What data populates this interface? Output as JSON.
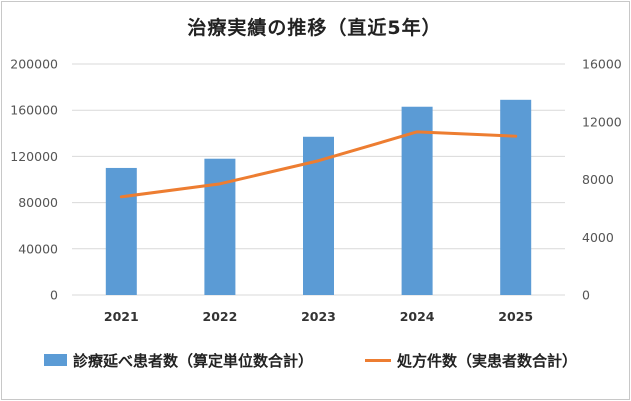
{
  "chart_data": {
    "type": "bar+line",
    "title": "治療実績の推移（直近5年）",
    "categories": [
      "2021",
      "2022",
      "2023",
      "2024",
      "2025"
    ],
    "series": [
      {
        "name": "診療延べ患者数（算定単位数合計）",
        "type": "bar",
        "axis": "left",
        "color": "#5b9bd5",
        "values": [
          110000,
          118000,
          137000,
          163000,
          169000
        ]
      },
      {
        "name": "処方件数（実患者数合計）",
        "type": "line",
        "axis": "right",
        "color": "#ed7d31",
        "values": [
          6800,
          7700,
          9300,
          11300,
          11000
        ]
      }
    ],
    "y_left": {
      "min": 0,
      "max": 200000,
      "ticks": [
        "0",
        "40000",
        "80000",
        "120000",
        "160000",
        "200000"
      ]
    },
    "y_right": {
      "min": 0,
      "max": 16000,
      "ticks": [
        "0",
        "4000",
        "8000",
        "12000",
        "16000"
      ]
    },
    "grid": true,
    "legend_position": "bottom"
  }
}
